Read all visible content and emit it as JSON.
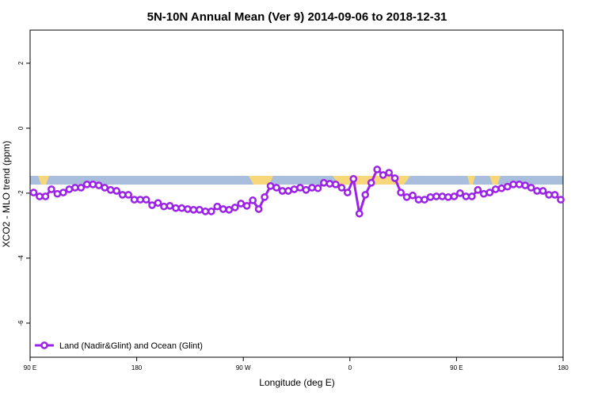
{
  "chart_data": {
    "type": "line",
    "title": "5N-10N Annual Mean (Ver 9)   2014-09-06 to 2018-12-31",
    "x_label": "Longitude (deg E)",
    "y_label": "XCO2 - MLO trend (ppm)",
    "x": [
      93,
      98,
      103,
      108,
      113,
      118,
      123,
      128,
      133,
      138,
      143,
      148,
      153,
      158,
      163,
      168,
      173,
      178,
      183,
      188,
      193,
      198,
      203,
      208,
      213,
      218,
      223,
      228,
      233,
      238,
      243,
      248,
      253,
      258,
      263,
      268,
      273,
      278,
      283,
      288,
      293,
      298,
      303,
      308,
      313,
      318,
      323,
      328,
      333,
      338,
      343,
      348,
      353,
      358,
      363,
      368,
      373,
      378,
      383,
      388,
      393,
      398,
      403,
      408,
      413,
      418,
      423,
      428,
      433,
      438,
      443,
      448,
      453,
      458,
      463,
      468,
      473,
      478,
      483,
      488,
      493,
      498,
      503,
      508,
      513,
      518,
      523,
      528,
      533,
      538
    ],
    "series": [
      {
        "name": "Land (Nadir&Glint) and Ocean (Glint)",
        "color": "#9b22e6",
        "values": [
          -1.98,
          -2.1,
          -2.1,
          -1.88,
          -2.02,
          -1.98,
          -1.88,
          -1.83,
          -1.83,
          -1.73,
          -1.73,
          -1.76,
          -1.83,
          -1.9,
          -1.93,
          -2.05,
          -2.05,
          -2.2,
          -2.2,
          -2.2,
          -2.37,
          -2.3,
          -2.41,
          -2.39,
          -2.46,
          -2.46,
          -2.49,
          -2.51,
          -2.51,
          -2.56,
          -2.56,
          -2.41,
          -2.49,
          -2.51,
          -2.44,
          -2.32,
          -2.39,
          -2.22,
          -2.49,
          -2.12,
          -1.78,
          -1.83,
          -1.93,
          -1.93,
          -1.88,
          -1.83,
          -1.9,
          -1.83,
          -1.85,
          -1.68,
          -1.71,
          -1.73,
          -1.83,
          -1.98,
          -1.56,
          -2.63,
          -2.05,
          -1.68,
          -1.27,
          -1.44,
          -1.37,
          -1.54,
          -1.98,
          -2.12,
          -2.07,
          -2.2,
          -2.2,
          -2.12,
          -2.1,
          -2.1,
          -2.12,
          -2.1,
          -2.0,
          -2.1,
          -2.1,
          -1.9,
          -2.02,
          -1.98,
          -1.88,
          -1.85,
          -1.8,
          -1.73,
          -1.73,
          -1.76,
          -1.83,
          -1.93,
          -1.93,
          -2.05,
          -2.05,
          -2.2
        ]
      }
    ],
    "xlim": [
      90,
      540
    ],
    "xticks": [
      {
        "value": 90,
        "label": "90 E"
      },
      180,
      {
        "value": 270,
        "label": "90 W"
      },
      {
        "value": 360,
        "label": "0"
      },
      {
        "value": 450,
        "label": "90 E"
      },
      {
        "value": 540,
        "label": "180"
      }
    ],
    "ylim": [
      -7.05,
      3.02
    ],
    "yticks": [
      2,
      0,
      -2,
      -4,
      -6
    ],
    "legend": "bottom-left"
  }
}
